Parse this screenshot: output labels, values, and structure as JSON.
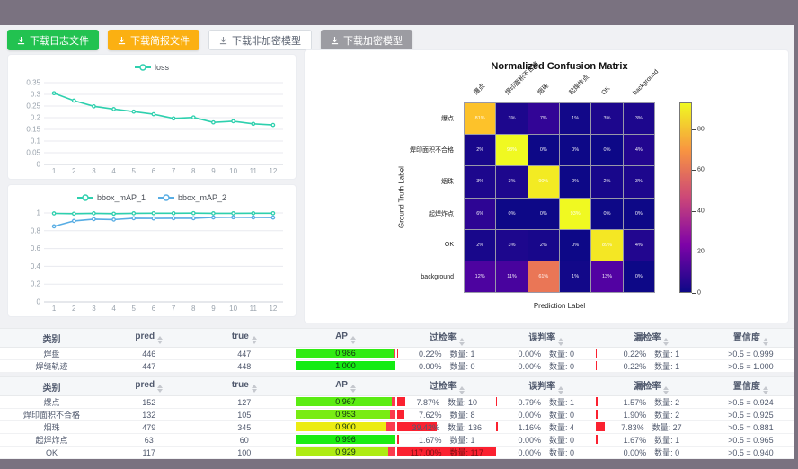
{
  "toolbar": {
    "buttons": [
      {
        "label": "下载日志文件",
        "style": "green"
      },
      {
        "label": "下载简报文件",
        "style": "orange"
      },
      {
        "label": "下载非加密模型",
        "style": "white"
      },
      {
        "label": "下载加密模型",
        "style": "gray"
      }
    ]
  },
  "chart_data": [
    {
      "type": "line",
      "title": "loss",
      "x": [
        1,
        2,
        3,
        4,
        5,
        6,
        7,
        8,
        9,
        10,
        11,
        12
      ],
      "y_tick_labels": [
        "0",
        "0.05",
        "0.1",
        "0.15",
        "0.2",
        "0.25",
        "0.3",
        "0.35"
      ],
      "y_max": 0.35,
      "series": [
        {
          "name": "loss",
          "color": "#2ed0ae",
          "values": [
            0.305,
            0.273,
            0.249,
            0.237,
            0.226,
            0.215,
            0.197,
            0.201,
            0.18,
            0.185,
            0.174,
            0.169
          ]
        }
      ]
    },
    {
      "type": "line",
      "title": "bbox_mAP",
      "x": [
        1,
        2,
        3,
        4,
        5,
        6,
        7,
        8,
        9,
        10,
        11,
        12
      ],
      "y_tick_labels": [
        "0",
        "0.2",
        "0.4",
        "0.6",
        "0.8",
        "1"
      ],
      "y_max": 1,
      "series": [
        {
          "name": "bbox_mAP_1",
          "color": "#2ed0ae",
          "values": [
            0.995,
            0.992,
            0.996,
            0.992,
            0.996,
            0.997,
            0.997,
            0.998,
            0.996,
            0.996,
            0.997,
            0.997
          ]
        },
        {
          "name": "bbox_mAP_2",
          "color": "#57ade4",
          "values": [
            0.85,
            0.91,
            0.93,
            0.925,
            0.94,
            0.938,
            0.94,
            0.94,
            0.95,
            0.952,
            0.95,
            0.948
          ]
        }
      ]
    }
  ],
  "matrix": {
    "title": "Normalized Confusion Matrix",
    "xlabel": "Prediction Label",
    "ylabel": "Ground Truth Label",
    "labels": [
      "爆点",
      "焊印面积不合格",
      "烟珠",
      "起焊炸点",
      "OK",
      "background"
    ],
    "unit": "%",
    "vmax": 93,
    "values": [
      [
        81,
        3,
        7,
        1,
        3,
        3
      ],
      [
        2,
        93,
        0,
        0,
        0,
        4
      ],
      [
        3,
        3,
        90,
        0,
        2,
        3
      ],
      [
        6,
        0,
        0,
        93,
        0,
        0
      ],
      [
        2,
        3,
        2,
        0,
        89,
        4
      ],
      [
        12,
        11,
        61,
        1,
        13,
        0
      ]
    ],
    "colorbar_ticks": [
      0,
      20,
      40,
      60,
      80
    ]
  },
  "tables": {
    "count_label": "数量:",
    "columns": [
      {
        "key": "category",
        "label": "类别",
        "sortable": false,
        "w": "13%"
      },
      {
        "key": "pred",
        "label": "pred",
        "sortable": true,
        "w": "11.5%"
      },
      {
        "key": "true",
        "label": "true",
        "sortable": true,
        "w": "12.5%"
      },
      {
        "key": "ap",
        "label": "AP",
        "sortable": true,
        "w": "13%"
      },
      {
        "key": "over",
        "label": "过检率",
        "sortable": true,
        "w": "12.5%"
      },
      {
        "key": "mis",
        "label": "误判率",
        "sortable": true,
        "w": "12.5%"
      },
      {
        "key": "miss",
        "label": "漏检率",
        "sortable": true,
        "w": "14%"
      },
      {
        "key": "conf",
        "label": "置信度",
        "sortable": true,
        "w": "11%"
      }
    ],
    "table1": [
      {
        "category": "焊盘",
        "pred": "446",
        "true": "447",
        "ap": "0.986",
        "ap_val": 0.986,
        "over": {
          "pct": "0.22%",
          "n": "1",
          "w": 0.22
        },
        "mis": {
          "pct": "0.00%",
          "n": "0",
          "w": 0
        },
        "miss": {
          "pct": "0.22%",
          "n": "1",
          "w": 0.22
        },
        "conf": ">0.5 = 0.999"
      },
      {
        "category": "焊缝轨迹",
        "pred": "447",
        "true": "448",
        "ap": "1.000",
        "ap_val": 1.0,
        "over": {
          "pct": "0.00%",
          "n": "0",
          "w": 0
        },
        "mis": {
          "pct": "0.00%",
          "n": "0",
          "w": 0
        },
        "miss": {
          "pct": "0.22%",
          "n": "1",
          "w": 0.22
        },
        "conf": ">0.5 = 1.000"
      }
    ],
    "table2": [
      {
        "category": "爆点",
        "pred": "152",
        "true": "127",
        "ap": "0.967",
        "ap_val": 0.967,
        "over": {
          "pct": "7.87%",
          "n": "10",
          "w": 7.87
        },
        "mis": {
          "pct": "0.79%",
          "n": "1",
          "w": 0.79
        },
        "miss": {
          "pct": "1.57%",
          "n": "2",
          "w": 1.57
        },
        "conf": ">0.5 = 0.924"
      },
      {
        "category": "焊印面积不合格",
        "pred": "132",
        "true": "105",
        "ap": "0.953",
        "ap_val": 0.953,
        "over": {
          "pct": "7.62%",
          "n": "8",
          "w": 7.62
        },
        "mis": {
          "pct": "0.00%",
          "n": "0",
          "w": 0
        },
        "miss": {
          "pct": "1.90%",
          "n": "2",
          "w": 1.9
        },
        "conf": ">0.5 = 0.925"
      },
      {
        "category": "烟珠",
        "pred": "479",
        "true": "345",
        "ap": "0.900",
        "ap_val": 0.9,
        "over": {
          "pct": "39.42%",
          "n": "136",
          "w": 39.42
        },
        "mis": {
          "pct": "1.16%",
          "n": "4",
          "w": 1.16
        },
        "miss": {
          "pct": "7.83%",
          "n": "27",
          "w": 7.83
        },
        "conf": ">0.5 = 0.881"
      },
      {
        "category": "起焊炸点",
        "pred": "63",
        "true": "60",
        "ap": "0.996",
        "ap_val": 0.996,
        "over": {
          "pct": "1.67%",
          "n": "1",
          "w": 1.67
        },
        "mis": {
          "pct": "0.00%",
          "n": "0",
          "w": 0
        },
        "miss": {
          "pct": "1.67%",
          "n": "1",
          "w": 1.67
        },
        "conf": ">0.5 = 0.965"
      },
      {
        "category": "OK",
        "pred": "117",
        "true": "100",
        "ap": "0.929",
        "ap_val": 0.929,
        "over": {
          "pct": "117.00%",
          "n": "117",
          "w": 100,
          "full": true
        },
        "mis": {
          "pct": "0.00%",
          "n": "0",
          "w": 0
        },
        "miss": {
          "pct": "0.00%",
          "n": "0",
          "w": 0
        },
        "conf": ">0.5 = 0.940"
      }
    ]
  }
}
